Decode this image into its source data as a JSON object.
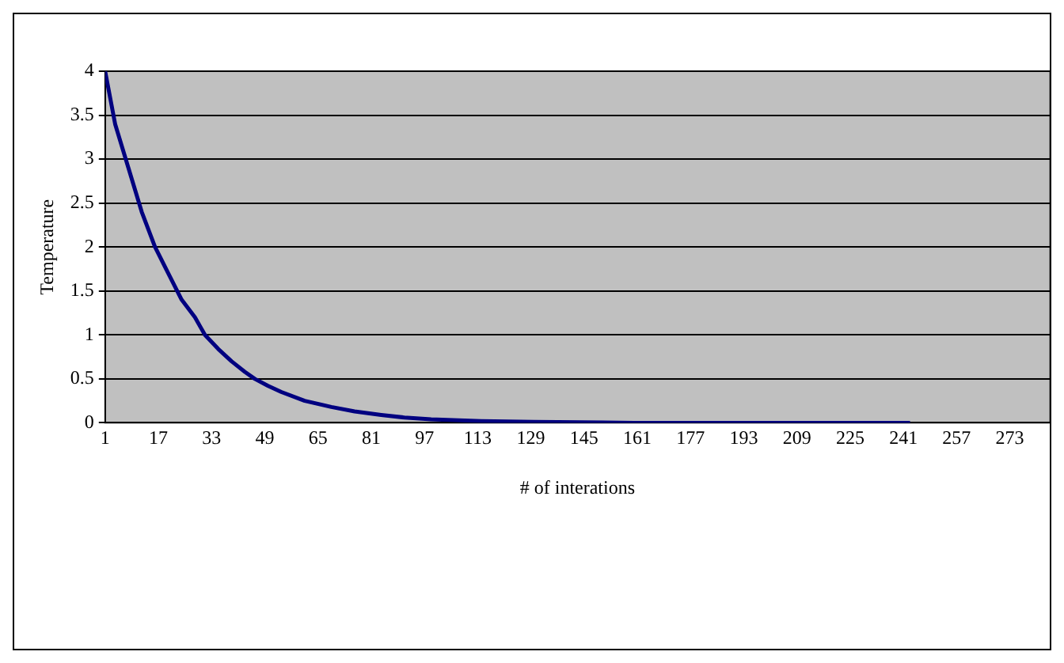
{
  "chart_data": {
    "type": "line",
    "xlabel": "# of interations",
    "ylabel": "Temperature",
    "x": [
      1,
      4,
      8,
      12,
      16,
      20,
      24,
      28,
      31,
      35,
      39,
      43,
      46,
      50,
      54,
      61,
      69,
      76,
      84,
      91,
      99,
      114,
      130,
      160,
      200,
      243
    ],
    "series": [
      {
        "color": "#000080",
        "values": [
          4,
          3.4,
          2.9,
          2.4,
          2.0,
          1.7,
          1.4,
          1.2,
          1.0,
          0.84,
          0.7,
          0.58,
          0.5,
          0.42,
          0.35,
          0.25,
          0.18,
          0.13,
          0.09,
          0.06,
          0.04,
          0.02,
          0.01,
          0,
          0,
          0
        ]
      }
    ],
    "xlim": [
      1,
      285
    ],
    "xticks": [
      1,
      17,
      33,
      49,
      65,
      81,
      97,
      113,
      129,
      145,
      161,
      177,
      193,
      209,
      225,
      241,
      257,
      273
    ],
    "ylim": [
      0,
      4
    ],
    "yticks": [
      0,
      0.5,
      1,
      1.5,
      2,
      2.5,
      3,
      3.5,
      4
    ],
    "grid": "y",
    "legend": false,
    "marker": "none",
    "line_style": "solid"
  }
}
